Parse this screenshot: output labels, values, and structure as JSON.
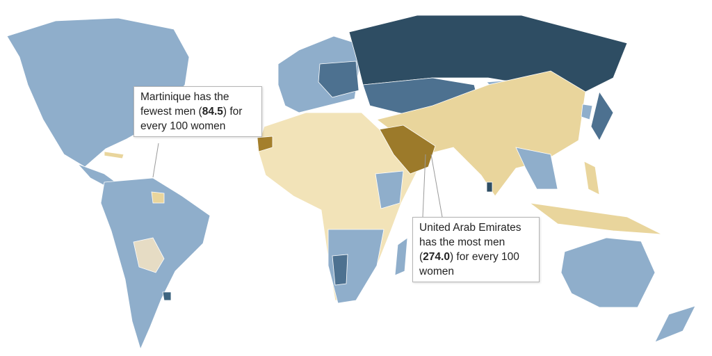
{
  "annotations": [
    {
      "before": "Martinique has the fewest men (",
      "value": "84.5",
      "after": ") for every 100 women"
    },
    {
      "before": "United Arab Emirates has the most men (",
      "value": "274.0",
      "after": ") for every 100 women"
    }
  ]
}
